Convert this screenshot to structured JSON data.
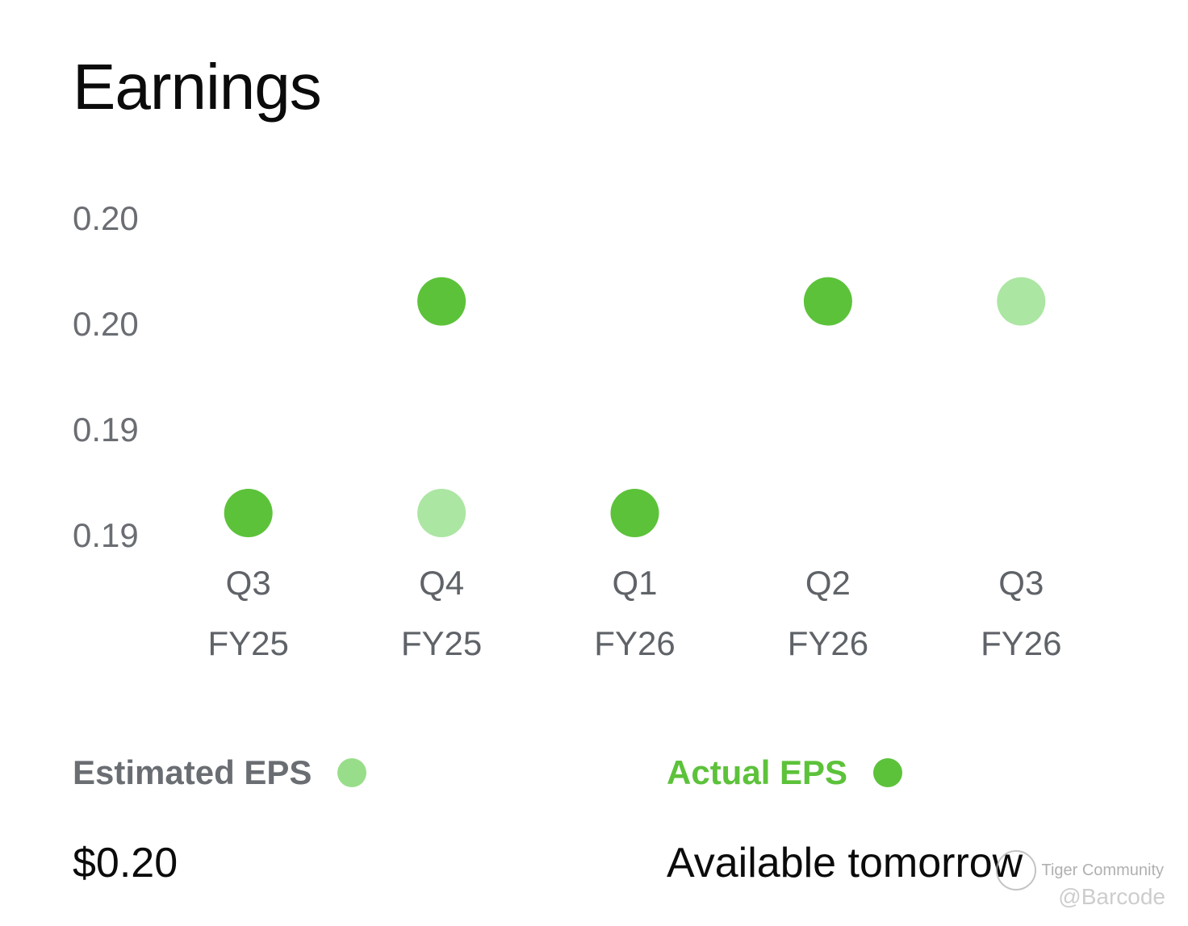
{
  "header": {
    "title": "Earnings"
  },
  "colors": {
    "actual": "#5cc23a",
    "estimated_point": "#abe6a2",
    "estimated_legend": "#98de8a",
    "tick_text": "#6a6d72"
  },
  "chart_data": {
    "type": "scatter",
    "categories": [
      [
        "Q3",
        "FY25"
      ],
      [
        "Q4",
        "FY25"
      ],
      [
        "Q1",
        "FY26"
      ],
      [
        "Q2",
        "FY26"
      ],
      [
        "Q3",
        "FY26"
      ]
    ],
    "y_tick_labels": [
      "0.20",
      "0.20",
      "0.19",
      "0.19"
    ],
    "y_tick_values": [
      0.2,
      0.197,
      0.193,
      0.19
    ],
    "ylim": [
      0.19,
      0.2
    ],
    "grid": false,
    "series": [
      {
        "name": "Actual EPS",
        "color": "#5cc23a",
        "values": [
          0.19,
          0.198,
          0.19,
          0.198,
          null
        ]
      },
      {
        "name": "Estimated EPS",
        "color": "#abe6a2",
        "values": [
          null,
          0.19,
          null,
          null,
          0.198
        ]
      }
    ],
    "legend_position": "bottom"
  },
  "legend": {
    "estimated_label": "Estimated EPS",
    "actual_label": "Actual EPS"
  },
  "values": {
    "estimated_value": "$0.20",
    "actual_value": "Available tomorrow"
  },
  "watermark": {
    "community": "Tiger Community",
    "handle": "@Barcode"
  }
}
